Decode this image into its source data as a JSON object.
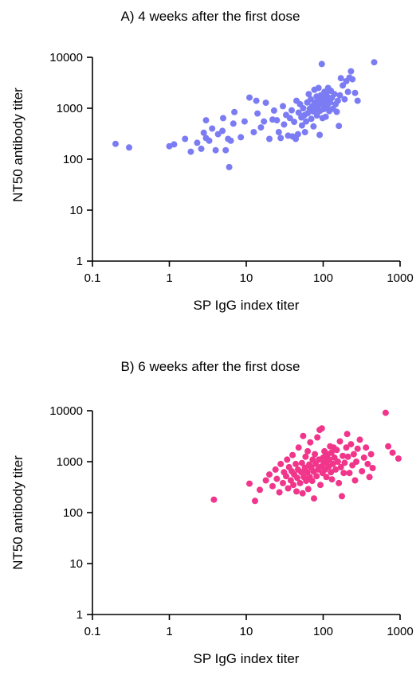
{
  "chart_data": [
    {
      "type": "scatter",
      "title": "A) 4 weeks after the first dose",
      "xlabel": "SP IgG index titer",
      "ylabel": "NT50 antibody titer",
      "x_scale": "log",
      "y_scale": "log",
      "xlim": [
        0.1,
        1000
      ],
      "ylim": [
        1,
        10000
      ],
      "x_tick_labels": [
        "0.1",
        "1",
        "10",
        "100",
        "1000"
      ],
      "y_tick_labels": [
        "1",
        "10",
        "100",
        "1000",
        "10000"
      ],
      "grid": false,
      "legend": "none",
      "point_color": "#7b7bf4",
      "points": [
        [
          0.2,
          200
        ],
        [
          0.3,
          170
        ],
        [
          1.0,
          180
        ],
        [
          1.15,
          195
        ],
        [
          1.6,
          250
        ],
        [
          1.9,
          140
        ],
        [
          2.3,
          210
        ],
        [
          2.6,
          160
        ],
        [
          2.8,
          330
        ],
        [
          3.0,
          260
        ],
        [
          3.0,
          580
        ],
        [
          3.3,
          230
        ],
        [
          3.6,
          400
        ],
        [
          4.0,
          150
        ],
        [
          4.3,
          310
        ],
        [
          4.9,
          360
        ],
        [
          5.0,
          640
        ],
        [
          5.4,
          150
        ],
        [
          5.8,
          250
        ],
        [
          6.0,
          70
        ],
        [
          6.3,
          230
        ],
        [
          6.8,
          500
        ],
        [
          7.0,
          840
        ],
        [
          8.5,
          270
        ],
        [
          9.5,
          550
        ],
        [
          11.0,
          1620
        ],
        [
          12.5,
          340
        ],
        [
          13.5,
          1400
        ],
        [
          14.0,
          790
        ],
        [
          15.5,
          420
        ],
        [
          17.0,
          550
        ],
        [
          18.0,
          1280
        ],
        [
          20.0,
          250
        ],
        [
          22.0,
          600
        ],
        [
          23.0,
          900
        ],
        [
          25.0,
          580
        ],
        [
          26.5,
          340
        ],
        [
          28.0,
          260
        ],
        [
          30.0,
          1100
        ],
        [
          31.0,
          480
        ],
        [
          33.0,
          740
        ],
        [
          35.0,
          290
        ],
        [
          37.0,
          640
        ],
        [
          39.0,
          910
        ],
        [
          40.0,
          280
        ],
        [
          42.0,
          540
        ],
        [
          44.0,
          250
        ],
        [
          45.0,
          1400
        ],
        [
          47.0,
          310
        ],
        [
          48.0,
          820
        ],
        [
          50.0,
          1200
        ],
        [
          52.0,
          660
        ],
        [
          53.0,
          460
        ],
        [
          55.0,
          1000
        ],
        [
          57.0,
          730
        ],
        [
          58.0,
          340
        ],
        [
          60.0,
          550
        ],
        [
          62.0,
          1300
        ],
        [
          63.0,
          800
        ],
        [
          65.0,
          1900
        ],
        [
          67.0,
          980
        ],
        [
          69.0,
          1500
        ],
        [
          70.0,
          620
        ],
        [
          72.0,
          1100
        ],
        [
          74.0,
          870
        ],
        [
          75.0,
          440
        ],
        [
          77.0,
          2300
        ],
        [
          78.0,
          1300
        ],
        [
          80.0,
          950
        ],
        [
          82.0,
          1700
        ],
        [
          83.0,
          720
        ],
        [
          85.0,
          1100
        ],
        [
          87.0,
          2500
        ],
        [
          88.0,
          1400
        ],
        [
          90.0,
          300
        ],
        [
          91.0,
          890
        ],
        [
          93.0,
          1800
        ],
        [
          95.0,
          1200
        ],
        [
          96.0,
          7400
        ],
        [
          98.0,
          640
        ],
        [
          100.0,
          1500
        ],
        [
          102.0,
          960
        ],
        [
          104.0,
          2100
        ],
        [
          106.0,
          1300
        ],
        [
          108.0,
          680
        ],
        [
          110.0,
          1900
        ],
        [
          113.0,
          1100
        ],
        [
          116.0,
          2500
        ],
        [
          118.0,
          1600
        ],
        [
          120.0,
          880
        ],
        [
          123.0,
          1300
        ],
        [
          126.0,
          2200
        ],
        [
          130.0,
          1600
        ],
        [
          134.0,
          980
        ],
        [
          140.0,
          1900
        ],
        [
          145.0,
          1200
        ],
        [
          150.0,
          850
        ],
        [
          155.0,
          1400
        ],
        [
          160.0,
          450
        ],
        [
          165.0,
          1800
        ],
        [
          170.0,
          3900
        ],
        [
          180.0,
          2800
        ],
        [
          190.0,
          1500
        ],
        [
          200.0,
          3400
        ],
        [
          210.0,
          2100
        ],
        [
          220.0,
          4000
        ],
        [
          230.0,
          5300
        ],
        [
          240.0,
          3700
        ],
        [
          260.0,
          2000
        ],
        [
          280.0,
          1400
        ],
        [
          460.0,
          8000
        ]
      ]
    },
    {
      "type": "scatter",
      "title": "B) 6 weeks after the first dose",
      "xlabel": "SP IgG index titer",
      "ylabel": "NT50 antibody titer",
      "x_scale": "log",
      "y_scale": "log",
      "xlim": [
        0.1,
        1000
      ],
      "ylim": [
        1,
        10000
      ],
      "x_tick_labels": [
        "0.1",
        "1",
        "10",
        "100",
        "1000"
      ],
      "y_tick_labels": [
        "1",
        "10",
        "100",
        "1000",
        "10000"
      ],
      "grid": false,
      "legend": "none",
      "point_color": "#f0358b",
      "points": [
        [
          3.8,
          180
        ],
        [
          11.0,
          370
        ],
        [
          13.0,
          170
        ],
        [
          15.0,
          280
        ],
        [
          18.0,
          430
        ],
        [
          20.0,
          560
        ],
        [
          22.0,
          330
        ],
        [
          24.0,
          700
        ],
        [
          25.0,
          460
        ],
        [
          27.0,
          250
        ],
        [
          28.0,
          900
        ],
        [
          30.0,
          380
        ],
        [
          31.0,
          620
        ],
        [
          33.0,
          520
        ],
        [
          34.0,
          1100
        ],
        [
          35.0,
          300
        ],
        [
          36.0,
          780
        ],
        [
          38.0,
          430
        ],
        [
          39.0,
          650
        ],
        [
          40.0,
          1350
        ],
        [
          41.0,
          350
        ],
        [
          42.0,
          560
        ],
        [
          44.0,
          900
        ],
        [
          45.0,
          260
        ],
        [
          46.0,
          480
        ],
        [
          47.0,
          700
        ],
        [
          48.0,
          1900
        ],
        [
          50.0,
          380
        ],
        [
          52.0,
          620
        ],
        [
          53.0,
          940
        ],
        [
          54.0,
          240
        ],
        [
          55.0,
          3200
        ],
        [
          56.0,
          500
        ],
        [
          58.0,
          760
        ],
        [
          59.0,
          1250
        ],
        [
          60.0,
          420
        ],
        [
          62.0,
          620
        ],
        [
          63.0,
          1600
        ],
        [
          64.0,
          290
        ],
        [
          66.0,
          880
        ],
        [
          67.0,
          500
        ],
        [
          68.0,
          2400
        ],
        [
          70.0,
          760
        ],
        [
          72.0,
          420
        ],
        [
          73.0,
          1100
        ],
        [
          75.0,
          640
        ],
        [
          76.0,
          190
        ],
        [
          78.0,
          1400
        ],
        [
          80.0,
          900
        ],
        [
          82.0,
          520
        ],
        [
          84.0,
          3000
        ],
        [
          86.0,
          700
        ],
        [
          88.0,
          1100
        ],
        [
          90.0,
          4200
        ],
        [
          92.0,
          350
        ],
        [
          94.0,
          800
        ],
        [
          96.0,
          4500
        ],
        [
          98.0,
          600
        ],
        [
          100.0,
          1200
        ],
        [
          102.0,
          930
        ],
        [
          104.0,
          1600
        ],
        [
          106.0,
          700
        ],
        [
          108.0,
          1300
        ],
        [
          110.0,
          500
        ],
        [
          112.0,
          1000
        ],
        [
          115.0,
          1400
        ],
        [
          118.0,
          800
        ],
        [
          120.0,
          1100
        ],
        [
          123.0,
          2000
        ],
        [
          126.0,
          620
        ],
        [
          128.0,
          1500
        ],
        [
          130.0,
          450
        ],
        [
          134.0,
          900
        ],
        [
          137.0,
          1900
        ],
        [
          140.0,
          1200
        ],
        [
          145.0,
          700
        ],
        [
          150.0,
          1700
        ],
        [
          155.0,
          1000
        ],
        [
          160.0,
          380
        ],
        [
          165.0,
          2500
        ],
        [
          170.0,
          780
        ],
        [
          175.0,
          210
        ],
        [
          180.0,
          1300
        ],
        [
          185.0,
          600
        ],
        [
          190.0,
          950
        ],
        [
          200.0,
          1900
        ],
        [
          205.0,
          3500
        ],
        [
          210.0,
          1250
        ],
        [
          220.0,
          600
        ],
        [
          230.0,
          2200
        ],
        [
          240.0,
          850
        ],
        [
          250.0,
          1400
        ],
        [
          260.0,
          430
        ],
        [
          270.0,
          1000
        ],
        [
          280.0,
          1800
        ],
        [
          300.0,
          2700
        ],
        [
          320.0,
          650
        ],
        [
          340.0,
          1200
        ],
        [
          360.0,
          1900
        ],
        [
          380.0,
          900
        ],
        [
          400.0,
          500
        ],
        [
          420.0,
          1400
        ],
        [
          440.0,
          750
        ],
        [
          650.0,
          9100
        ],
        [
          700.0,
          2000
        ],
        [
          800.0,
          1500
        ],
        [
          950.0,
          1150
        ]
      ]
    }
  ]
}
